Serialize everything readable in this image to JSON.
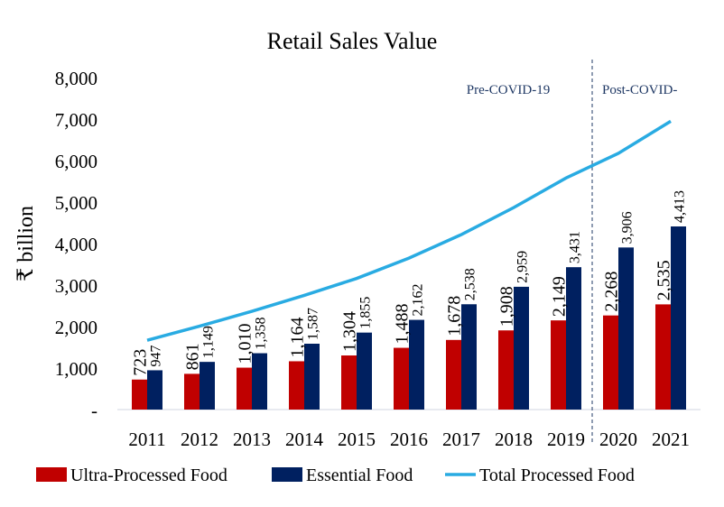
{
  "chart_data": {
    "type": "bar",
    "title": "Retail Sales Value",
    "ylabel": "₹ billion",
    "xlabel": "",
    "ylim": [
      0,
      8000
    ],
    "yticks": [
      0,
      1000,
      2000,
      3000,
      4000,
      5000,
      6000,
      7000,
      8000
    ],
    "ytick_labels": [
      "-",
      "1,000",
      "2,000",
      "3,000",
      "4,000",
      "5,000",
      "6,000",
      "7,000",
      "8,000"
    ],
    "categories": [
      "2011",
      "2012",
      "2013",
      "2014",
      "2015",
      "2016",
      "2017",
      "2018",
      "2019",
      "2020",
      "2021"
    ],
    "series": [
      {
        "name": "Ultra-Processed Food",
        "kind": "bar",
        "color": "#c00000",
        "values": [
          723,
          861,
          1010,
          1164,
          1304,
          1488,
          1678,
          1908,
          2149,
          2268,
          2535
        ],
        "labels": [
          "723",
          "861",
          "1,010",
          "1,164",
          "1,304",
          "1,488",
          "1,678",
          "1,908",
          "2,149",
          "2,268",
          "2,535"
        ]
      },
      {
        "name": "Essential Food",
        "kind": "bar",
        "color": "#002060",
        "values": [
          947,
          1149,
          1358,
          1587,
          1855,
          2162,
          2538,
          2959,
          3431,
          3906,
          4413
        ],
        "labels": [
          "947",
          "1,149",
          "1,358",
          "1,587",
          "1,855",
          "2,162",
          "2,538",
          "2,959",
          "3,431",
          "3,906",
          "4,413"
        ]
      },
      {
        "name": "Total Processed Food",
        "kind": "line",
        "color": "#29abe2",
        "values": [
          1670,
          2010,
          2368,
          2751,
          3159,
          3650,
          4216,
          4867,
          5580,
          6174,
          6948
        ]
      }
    ],
    "annotations": {
      "pre": "Pre-COVID-19",
      "post": "Post-COVID-",
      "divider_after": "2019"
    },
    "legend_position": "bottom",
    "grid": false
  }
}
